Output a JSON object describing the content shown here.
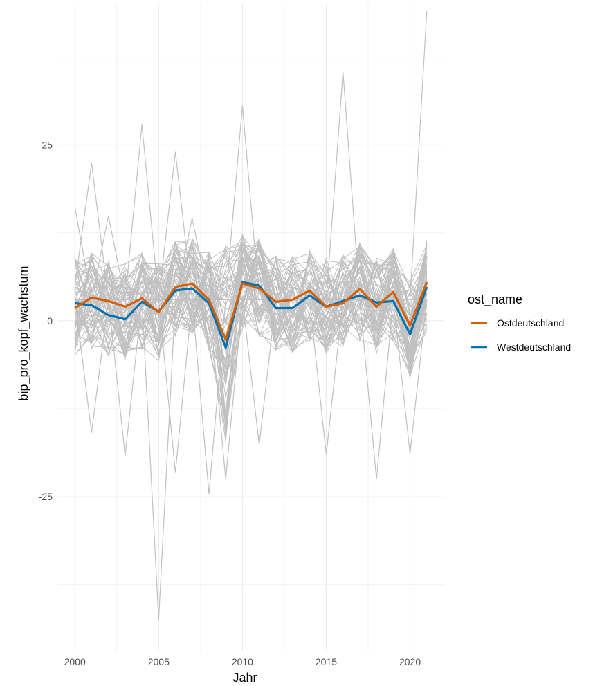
{
  "chart_data": {
    "type": "line",
    "title": "",
    "xlabel": "Jahr",
    "ylabel": "bip_pro_kopf_wachstum",
    "xlim": [
      1999,
      2022
    ],
    "ylim": [
      -47,
      45
    ],
    "x_ticks": [
      2000,
      2005,
      2010,
      2015,
      2020
    ],
    "x_tick_labels": [
      "2000",
      "2005",
      "2010",
      "2015",
      "2020"
    ],
    "y_ticks": [
      -25,
      0,
      25
    ],
    "y_tick_labels": [
      "-25",
      "0",
      "25"
    ],
    "grid": true,
    "legend_position": "right",
    "legend_title": "ost_name",
    "background_lines_color": "#c0c0c0",
    "x": [
      2000,
      2001,
      2002,
      2003,
      2004,
      2005,
      2006,
      2007,
      2008,
      2009,
      2010,
      2011,
      2012,
      2013,
      2014,
      2015,
      2016,
      2017,
      2018,
      2019,
      2020,
      2021
    ],
    "series": [
      {
        "name": "Ostdeutschland",
        "color": "#d55e00",
        "values": [
          1.8,
          3.3,
          2.8,
          2.0,
          3.2,
          1.2,
          4.8,
          5.3,
          3.0,
          -2.7,
          5.3,
          4.6,
          2.7,
          3.0,
          4.3,
          2.0,
          2.5,
          4.5,
          2.0,
          4.1,
          -0.7,
          5.5
        ]
      },
      {
        "name": "Westdeutschland",
        "color": "#0072b2",
        "values": [
          2.5,
          2.2,
          0.8,
          0.2,
          2.7,
          1.3,
          4.3,
          4.6,
          2.5,
          -3.8,
          5.5,
          5.0,
          1.8,
          1.8,
          3.6,
          2.0,
          2.8,
          3.6,
          2.6,
          2.8,
          -1.9,
          4.8
        ]
      }
    ],
    "background_lines": [
      [
        16.2,
        3.0,
        14.9,
        3.0,
        3.0,
        3.0,
        3.0,
        14.6,
        3.0,
        3.0,
        3.0,
        3.0,
        3.0,
        3.0,
        3.0,
        3.0,
        3.0,
        3.0,
        3.0,
        3.0,
        3.0,
        3.0
      ],
      [
        5.0,
        22.4,
        3.0,
        3.0,
        3.0,
        3.0,
        3.0,
        3.0,
        3.0,
        3.0,
        3.0,
        3.0,
        3.0,
        3.0,
        3.0,
        3.0,
        3.0,
        3.0,
        3.0,
        3.0,
        3.0,
        3.0
      ],
      [
        3.0,
        3.0,
        3.0,
        3.0,
        27.9,
        3.0,
        3.0,
        3.0,
        3.0,
        3.0,
        3.0,
        3.0,
        3.0,
        3.0,
        3.0,
        3.0,
        3.0,
        3.0,
        3.0,
        3.0,
        3.0,
        3.0
      ],
      [
        3.0,
        3.0,
        3.0,
        3.0,
        3.0,
        3.0,
        24.0,
        3.0,
        3.0,
        3.0,
        3.0,
        3.0,
        3.0,
        3.0,
        3.0,
        3.0,
        3.0,
        3.0,
        3.0,
        3.0,
        3.0,
        3.0
      ],
      [
        3.0,
        3.0,
        3.0,
        3.0,
        3.0,
        3.0,
        3.0,
        3.0,
        3.0,
        3.0,
        30.6,
        3.0,
        3.0,
        3.0,
        3.0,
        3.0,
        3.0,
        3.0,
        3.0,
        3.0,
        3.0,
        3.0
      ],
      [
        3.0,
        3.0,
        3.0,
        3.0,
        3.0,
        3.0,
        3.0,
        3.0,
        3.0,
        3.0,
        3.0,
        3.0,
        3.0,
        3.0,
        3.0,
        3.0,
        35.4,
        3.0,
        3.0,
        3.0,
        3.0,
        3.0
      ],
      [
        3.0,
        3.0,
        3.0,
        3.0,
        3.0,
        3.0,
        3.0,
        3.0,
        3.0,
        3.0,
        3.0,
        3.0,
        3.0,
        3.0,
        3.0,
        3.0,
        3.0,
        3.0,
        3.0,
        3.0,
        3.0,
        44.0
      ],
      [
        3.0,
        3.0,
        3.0,
        3.0,
        3.0,
        -42.5,
        3.0,
        3.0,
        3.0,
        3.0,
        3.0,
        3.0,
        3.0,
        3.0,
        3.0,
        3.0,
        3.0,
        3.0,
        3.0,
        3.0,
        3.0,
        3.0
      ],
      [
        3.0,
        -15.9,
        3.0,
        3.0,
        3.0,
        3.0,
        3.0,
        3.0,
        3.0,
        3.0,
        3.0,
        3.0,
        3.0,
        3.0,
        3.0,
        3.0,
        3.0,
        3.0,
        3.0,
        3.0,
        3.0,
        3.0
      ],
      [
        3.0,
        3.0,
        3.0,
        -19.2,
        3.0,
        3.0,
        3.0,
        3.0,
        3.0,
        3.0,
        3.0,
        3.0,
        3.0,
        3.0,
        3.0,
        3.0,
        3.0,
        3.0,
        3.0,
        3.0,
        3.0,
        3.0
      ],
      [
        3.0,
        3.0,
        3.0,
        3.0,
        3.0,
        3.0,
        -21.6,
        3.0,
        3.0,
        3.0,
        3.0,
        3.0,
        3.0,
        3.0,
        3.0,
        3.0,
        3.0,
        3.0,
        3.0,
        3.0,
        3.0,
        3.0
      ],
      [
        3.0,
        3.0,
        3.0,
        3.0,
        3.0,
        3.0,
        3.0,
        3.0,
        -24.6,
        3.0,
        3.0,
        3.0,
        3.0,
        3.0,
        3.0,
        3.0,
        3.0,
        3.0,
        3.0,
        3.0,
        3.0,
        3.0
      ],
      [
        3.0,
        3.0,
        3.0,
        3.0,
        3.0,
        3.0,
        3.0,
        3.0,
        3.0,
        -22.5,
        3.0,
        3.0,
        3.0,
        3.0,
        3.0,
        3.0,
        3.0,
        3.0,
        3.0,
        3.0,
        3.0,
        3.0
      ],
      [
        3.0,
        3.0,
        3.0,
        3.0,
        3.0,
        3.0,
        3.0,
        3.0,
        3.0,
        3.0,
        3.0,
        -17.6,
        3.0,
        3.0,
        3.0,
        3.0,
        3.0,
        3.0,
        3.0,
        3.0,
        3.0,
        3.0
      ],
      [
        3.0,
        3.0,
        3.0,
        3.0,
        3.0,
        3.0,
        3.0,
        3.0,
        3.0,
        3.0,
        3.0,
        3.0,
        3.0,
        3.0,
        3.0,
        -19.0,
        3.0,
        3.0,
        3.0,
        3.0,
        3.0,
        3.0
      ],
      [
        3.0,
        3.0,
        3.0,
        3.0,
        3.0,
        3.0,
        3.0,
        3.0,
        3.0,
        3.0,
        3.0,
        3.0,
        3.0,
        3.0,
        3.0,
        3.0,
        3.0,
        3.0,
        -22.5,
        3.0,
        3.0,
        3.0
      ],
      [
        3.0,
        3.0,
        3.0,
        3.0,
        3.0,
        3.0,
        3.0,
        3.0,
        3.0,
        3.0,
        3.0,
        3.0,
        3.0,
        3.0,
        3.0,
        3.0,
        3.0,
        3.0,
        3.0,
        3.0,
        -18.9,
        3.0
      ]
    ]
  }
}
